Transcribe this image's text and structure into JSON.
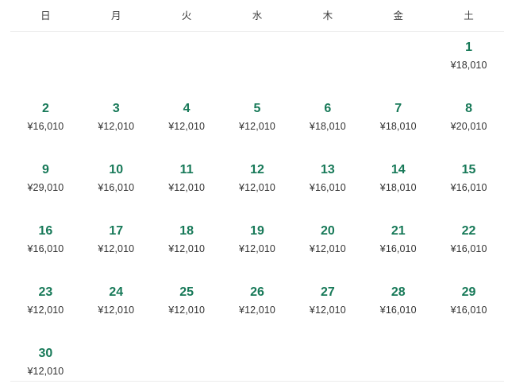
{
  "calendar": {
    "weekdays": [
      "日",
      "月",
      "火",
      "水",
      "木",
      "金",
      "土"
    ],
    "weeks": [
      [
        null,
        null,
        null,
        null,
        null,
        null,
        {
          "day": "1",
          "price": "¥18,010"
        }
      ],
      [
        {
          "day": "2",
          "price": "¥16,010"
        },
        {
          "day": "3",
          "price": "¥12,010"
        },
        {
          "day": "4",
          "price": "¥12,010"
        },
        {
          "day": "5",
          "price": "¥12,010"
        },
        {
          "day": "6",
          "price": "¥18,010"
        },
        {
          "day": "7",
          "price": "¥18,010"
        },
        {
          "day": "8",
          "price": "¥20,010"
        }
      ],
      [
        {
          "day": "9",
          "price": "¥29,010"
        },
        {
          "day": "10",
          "price": "¥16,010"
        },
        {
          "day": "11",
          "price": "¥12,010"
        },
        {
          "day": "12",
          "price": "¥12,010"
        },
        {
          "day": "13",
          "price": "¥16,010"
        },
        {
          "day": "14",
          "price": "¥18,010"
        },
        {
          "day": "15",
          "price": "¥16,010"
        }
      ],
      [
        {
          "day": "16",
          "price": "¥16,010"
        },
        {
          "day": "17",
          "price": "¥12,010"
        },
        {
          "day": "18",
          "price": "¥12,010"
        },
        {
          "day": "19",
          "price": "¥12,010"
        },
        {
          "day": "20",
          "price": "¥12,010"
        },
        {
          "day": "21",
          "price": "¥16,010"
        },
        {
          "day": "22",
          "price": "¥16,010"
        }
      ],
      [
        {
          "day": "23",
          "price": "¥12,010"
        },
        {
          "day": "24",
          "price": "¥12,010"
        },
        {
          "day": "25",
          "price": "¥12,010"
        },
        {
          "day": "26",
          "price": "¥12,010"
        },
        {
          "day": "27",
          "price": "¥12,010"
        },
        {
          "day": "28",
          "price": "¥16,010"
        },
        {
          "day": "29",
          "price": "¥16,010"
        }
      ],
      [
        {
          "day": "30",
          "price": "¥12,010"
        },
        null,
        null,
        null,
        null,
        null,
        null
      ]
    ],
    "colors": {
      "date_green": "#177958",
      "price_text": "#333333",
      "weekday_text": "#3c3c3c",
      "divider": "#ededed",
      "background": "#ffffff"
    }
  }
}
